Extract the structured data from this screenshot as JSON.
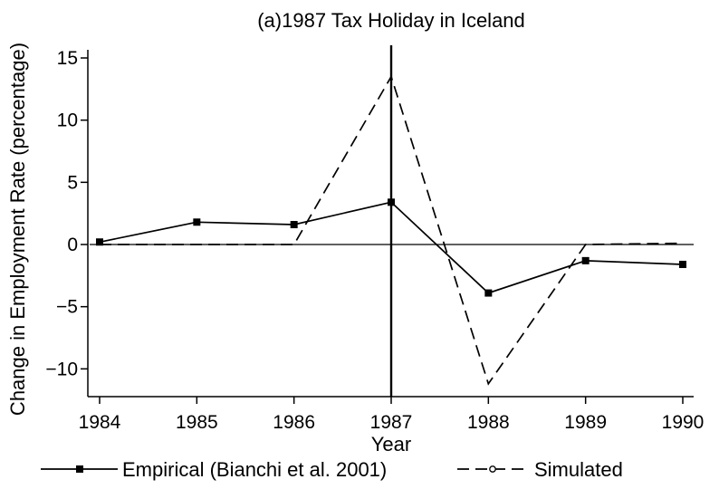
{
  "chart_data": {
    "type": "line",
    "title": "(a)1987 Tax Holiday in Iceland",
    "xlabel": "Year",
    "ylabel": "Change in Employment Rate (percentage)",
    "x": [
      1984,
      1985,
      1986,
      1987,
      1988,
      1989,
      1990
    ],
    "xlim": [
      1984,
      1990
    ],
    "ylim": [
      -12,
      15
    ],
    "yticks": [
      15,
      10,
      5,
      0,
      -5,
      -10
    ],
    "ytick_labels": [
      "15",
      "10",
      "5",
      "0",
      "−5",
      "−10"
    ],
    "xtick_labels": [
      "1984",
      "1985",
      "1986",
      "1987",
      "1988",
      "1989",
      "1990"
    ],
    "reference_lines": {
      "horizontal_y": 0,
      "vertical_x": 1987
    },
    "grid": false,
    "legend_position": "bottom",
    "series": [
      {
        "name": "Empirical (Bianchi et al. 2001)",
        "values": [
          0.2,
          1.8,
          1.6,
          3.4,
          -3.9,
          -1.3,
          -1.6
        ],
        "style": "solid",
        "marker": "filled-square",
        "color": "#000000"
      },
      {
        "name": "Simulated",
        "values": [
          0.0,
          0.0,
          0.0,
          13.5,
          -11.2,
          0.0,
          0.1
        ],
        "style": "dashed",
        "marker": "hollow-circle",
        "color": "#000000"
      }
    ]
  }
}
